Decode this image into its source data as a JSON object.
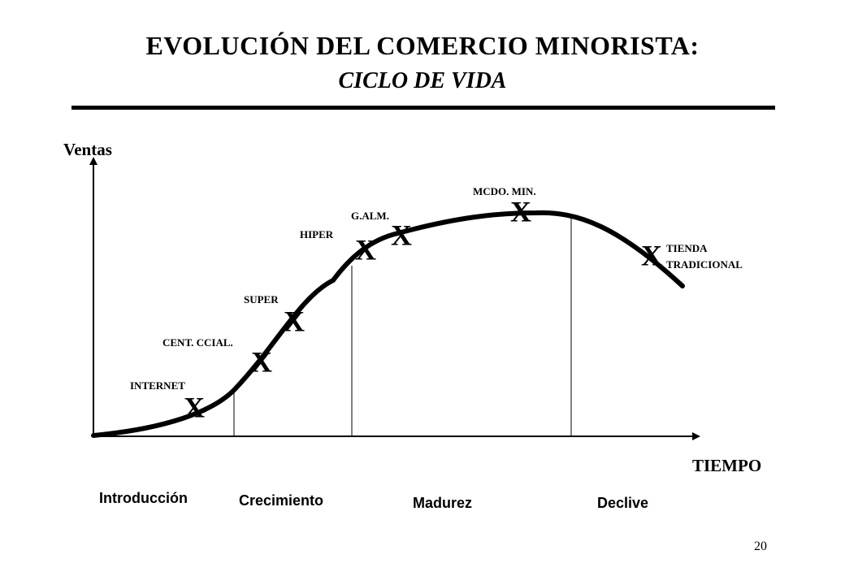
{
  "slide": {
    "title": "EVOLUCIÓN  DEL  COMERCIO  MINORISTA:",
    "subtitle": "CICLO  DE  VIDA",
    "page_number": "20"
  },
  "axes": {
    "y_label": "Ventas",
    "x_label": "TIEMPO"
  },
  "stages": [
    {
      "label": "Introducción"
    },
    {
      "label": "Crecimiento"
    },
    {
      "label": "Madurez"
    },
    {
      "label": "Declive"
    }
  ],
  "formats": [
    {
      "label": "INTERNET",
      "marker": "X"
    },
    {
      "label": "CENT.  CCIAL.",
      "marker": "X"
    },
    {
      "label": "SUPER",
      "marker": "X"
    },
    {
      "label": "HIPER",
      "marker": "X"
    },
    {
      "label": "G.ALM.",
      "marker": "X"
    },
    {
      "label": "MCDO.  MIN.",
      "marker": "X"
    },
    {
      "label_lines": [
        "TIENDA",
        "TRADICIONAL"
      ],
      "marker": "X"
    }
  ]
}
